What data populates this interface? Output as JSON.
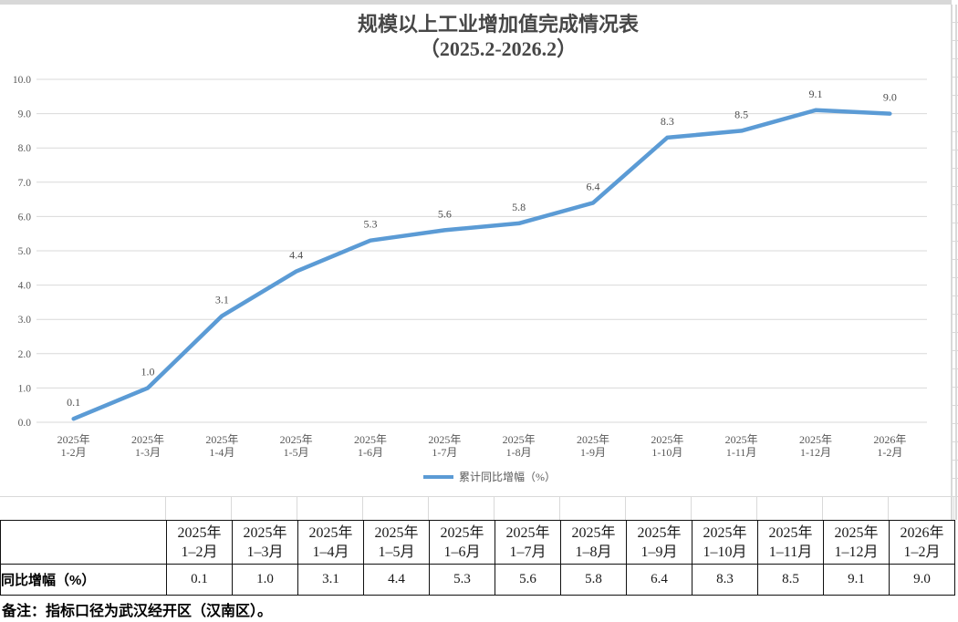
{
  "chart_data": {
    "type": "line",
    "title": "规模以上工业增加值完成情况表",
    "subtitle": "（2025.2-2026.2）",
    "legend": "累计同比增幅（%）",
    "legend_position": "bottom",
    "grid": true,
    "ylim": [
      0,
      10
    ],
    "ytick_step": 1,
    "ytick_decimals": 1,
    "categories": [
      {
        "line1": "2025年",
        "line2": "1-2月"
      },
      {
        "line1": "2025年",
        "line2": "1-3月"
      },
      {
        "line1": "2025年",
        "line2": "1-4月"
      },
      {
        "line1": "2025年",
        "line2": "1-5月"
      },
      {
        "line1": "2025年",
        "line2": "1-6月"
      },
      {
        "line1": "2025年",
        "line2": "1-7月"
      },
      {
        "line1": "2025年",
        "line2": "1-8月"
      },
      {
        "line1": "2025年",
        "line2": "1-9月"
      },
      {
        "line1": "2025年",
        "line2": "1-10月"
      },
      {
        "line1": "2025年",
        "line2": "1-11月"
      },
      {
        "line1": "2025年",
        "line2": "1-12月"
      },
      {
        "line1": "2026年",
        "line2": "1-2月"
      }
    ],
    "values": [
      0.1,
      1.0,
      3.1,
      4.4,
      5.3,
      5.6,
      5.8,
      6.4,
      8.3,
      8.5,
      9.1,
      9.0
    ],
    "value_labels": [
      "0.1",
      "1.0",
      "3.1",
      "4.4",
      "5.3",
      "5.6",
      "5.8",
      "6.4",
      "8.3",
      "8.5",
      "9.1",
      "9.0"
    ],
    "colors": {
      "line": "#5B9BD5",
      "grid": "#D9D9D9",
      "axis_text": "#595959",
      "title_text": "#474747",
      "label_text": "#4d4d4d"
    }
  },
  "table": {
    "corner_label": "",
    "row_label": "同比增幅（%）",
    "columns": [
      {
        "line1": "2025年",
        "line2": "1–2月"
      },
      {
        "line1": "2025年",
        "line2": "1–3月"
      },
      {
        "line1": "2025年",
        "line2": "1–4月"
      },
      {
        "line1": "2025年",
        "line2": "1–5月"
      },
      {
        "line1": "2025年",
        "line2": "1–6月"
      },
      {
        "line1": "2025年",
        "line2": "1–7月"
      },
      {
        "line1": "2025年",
        "line2": "1–8月"
      },
      {
        "line1": "2025年",
        "line2": "1–9月"
      },
      {
        "line1": "2025年",
        "line2": "1–10月"
      },
      {
        "line1": "2025年",
        "line2": "1–11月"
      },
      {
        "line1": "2025年",
        "line2": "1–12月"
      },
      {
        "line1": "2026年",
        "line2": "1–2月"
      }
    ],
    "values": [
      "0.1",
      "1.0",
      "3.1",
      "4.4",
      "5.3",
      "5.6",
      "5.8",
      "6.4",
      "8.3",
      "8.5",
      "9.1",
      "9.0"
    ]
  },
  "note": "备注：指标口径为武汉经开区（汉南区）。"
}
